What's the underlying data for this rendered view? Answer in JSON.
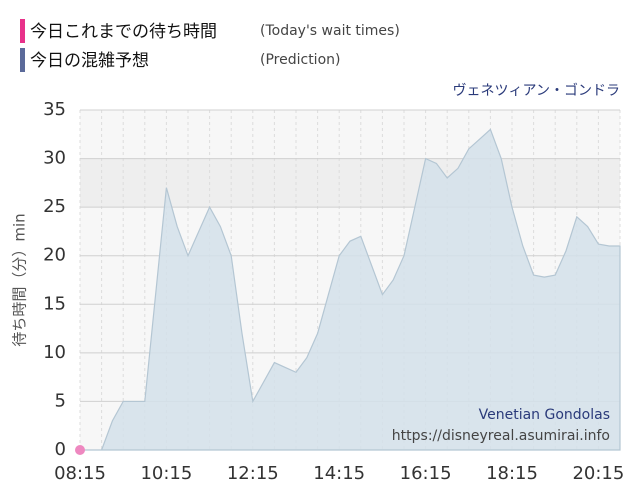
{
  "chart_data": {
    "type": "area",
    "legend_title": [
      "今日これまでの待ち時間",
      "今日の混雑予想"
    ],
    "legend_note": [
      "(Today's wait times)",
      "(Prediction)"
    ],
    "subtitle": "ヴェネツィアン・ゴンドラ",
    "ylabel": "待ち時間（分）min",
    "watermark": [
      "Venetian Gondolas",
      "https://disneyreal.asumirai.info"
    ],
    "categories": [
      "08:15",
      null,
      null,
      null,
      null,
      null,
      null,
      null,
      "10:15",
      null,
      null,
      null,
      null,
      null,
      null,
      null,
      "12:15",
      null,
      null,
      null,
      null,
      null,
      null,
      null,
      "14:15",
      null,
      null,
      null,
      null,
      null,
      null,
      null,
      "16:15",
      null,
      null,
      null,
      null,
      null,
      null,
      null,
      "18:15",
      null,
      null,
      null,
      null,
      null,
      null,
      null,
      "20:15",
      null,
      null
    ],
    "series": [
      {
        "name": "今日これまでの待ち時間",
        "color": "#e8318a",
        "values": [
          0,
          null,
          null,
          null,
          null,
          null,
          null,
          null,
          null,
          null,
          null,
          null,
          null,
          null,
          null,
          null,
          null,
          null,
          null,
          null,
          null,
          null,
          null,
          null,
          null,
          null,
          null,
          null,
          null,
          null,
          null,
          null,
          null,
          null,
          null,
          null,
          null,
          null,
          null,
          null,
          null,
          null,
          null,
          null,
          null,
          null,
          null,
          null,
          null,
          null,
          null
        ]
      },
      {
        "name": "今日の混雑予想",
        "color": "#5b6a9a",
        "values": [
          0,
          0,
          0,
          3,
          5,
          5,
          5,
          16,
          27,
          23,
          20,
          22.5,
          25,
          23,
          20,
          12,
          5,
          7,
          9,
          8.5,
          8,
          9.5,
          12,
          16,
          20,
          21.5,
          22,
          19,
          16,
          17.5,
          20,
          25,
          30,
          29.5,
          28,
          29,
          31,
          32,
          33,
          30,
          25,
          21,
          18,
          17.8,
          18,
          20.5,
          24,
          23,
          21.2,
          21,
          21
        ]
      }
    ],
    "ylim": [
      0,
      35
    ],
    "yticks": [
      0,
      5,
      10,
      15,
      20,
      25,
      30,
      35
    ],
    "grid": true
  }
}
